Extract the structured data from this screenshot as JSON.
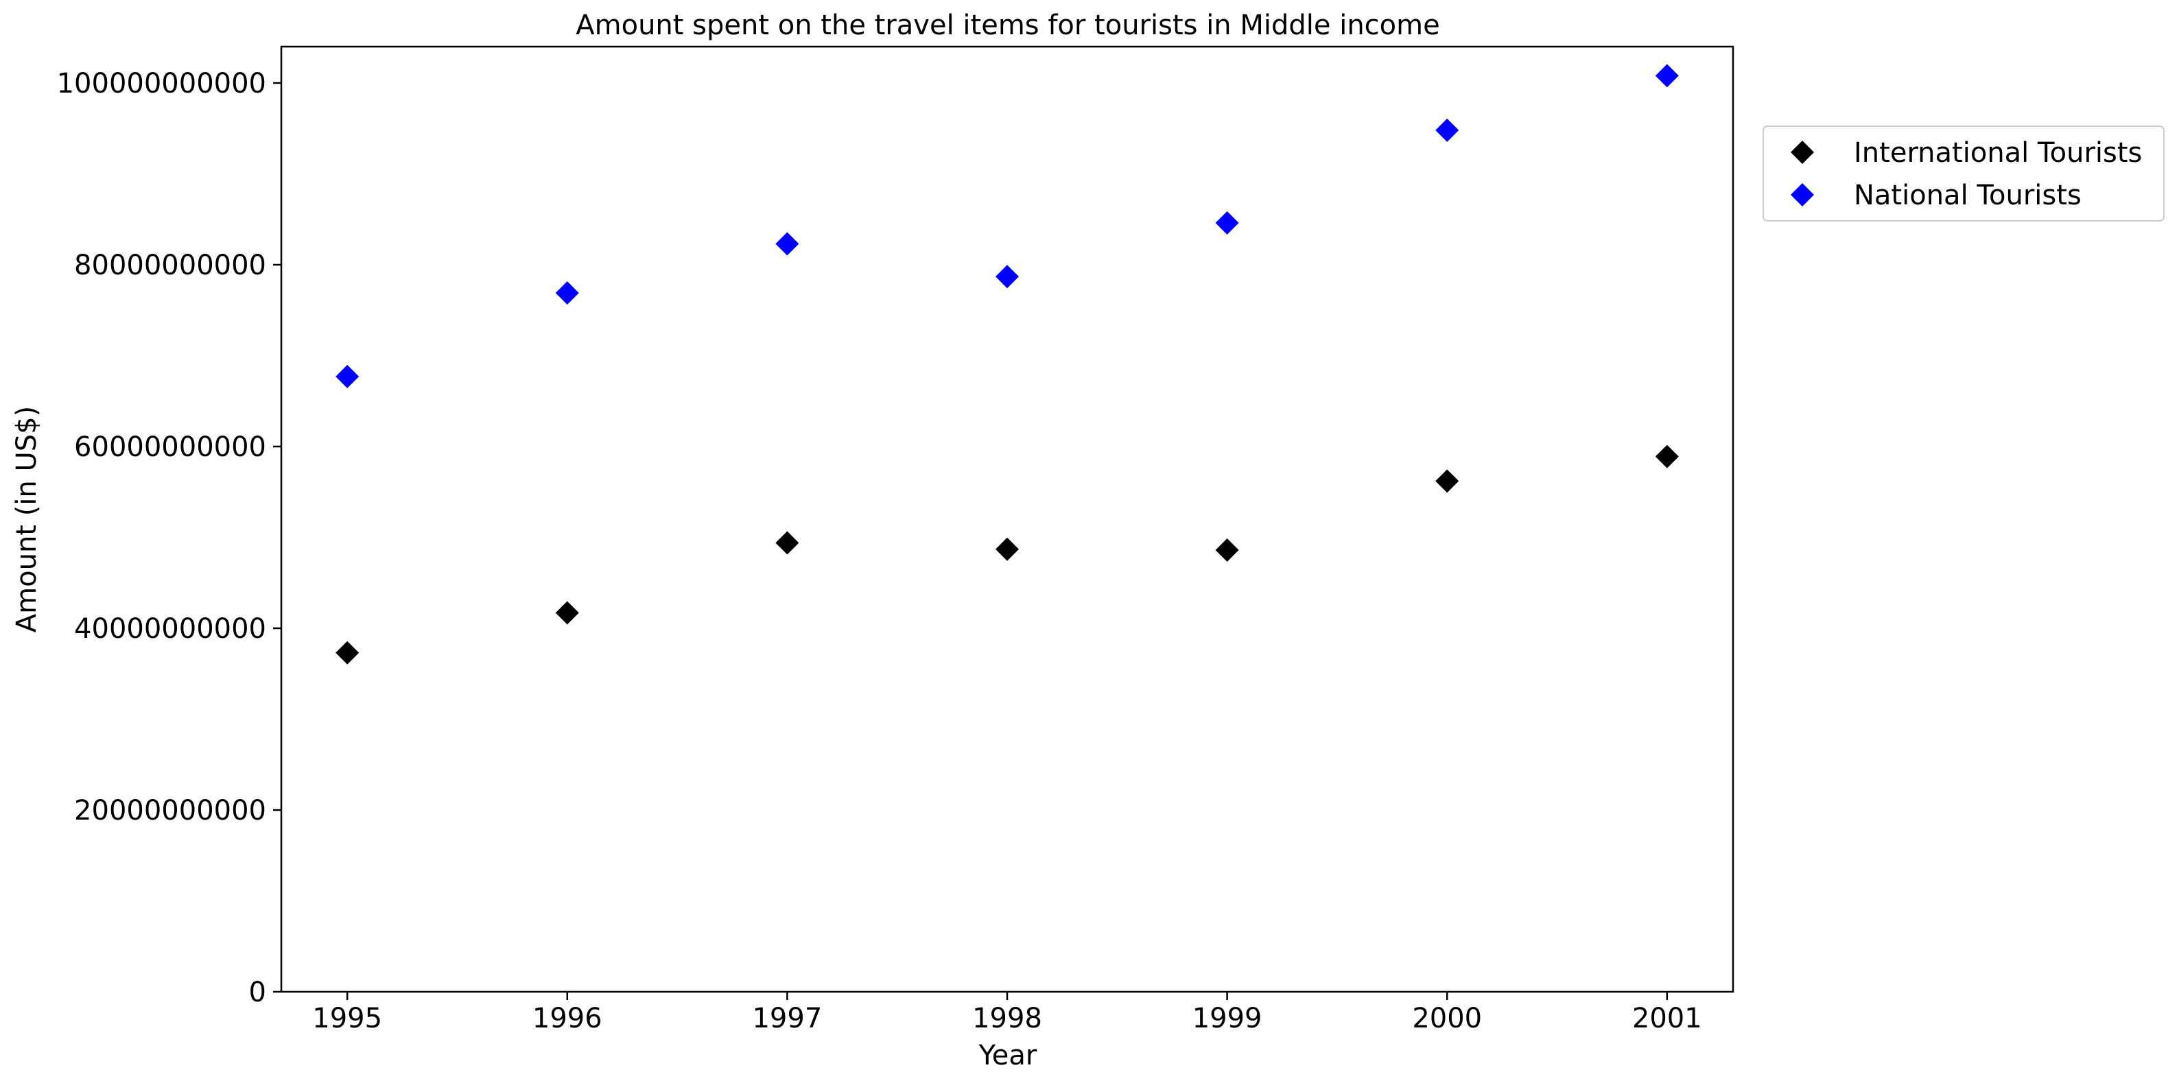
{
  "chart_data": {
    "type": "scatter",
    "title": "Amount spent on the travel items for tourists in Middle income",
    "xlabel": "Year",
    "ylabel": "Amount (in US$)",
    "x": [
      1995,
      1996,
      1997,
      1998,
      1999,
      2000,
      2001
    ],
    "x_tick_labels": [
      "1995",
      "1996",
      "1997",
      "1998",
      "1999",
      "2000",
      "2001"
    ],
    "xlim": [
      1994.7,
      2001.3
    ],
    "ylim": [
      0,
      104000000000
    ],
    "y_ticks": [
      0,
      20000000000,
      40000000000,
      60000000000,
      80000000000,
      100000000000
    ],
    "y_tick_labels": [
      "0",
      "20000000000",
      "40000000000",
      "60000000000",
      "80000000000",
      "100000000000"
    ],
    "grid": false,
    "legend_position": "outside-right-top",
    "marker": "diamond",
    "series": [
      {
        "name": "International Tourists",
        "color": "#000000",
        "values": [
          37300000000,
          41700000000,
          49400000000,
          48700000000,
          48600000000,
          56200000000,
          58900000000
        ]
      },
      {
        "name": "National Tourists",
        "color": "#0000ff",
        "values": [
          67700000000,
          76900000000,
          82300000000,
          78700000000,
          84600000000,
          94800000000,
          100800000000
        ]
      }
    ]
  }
}
